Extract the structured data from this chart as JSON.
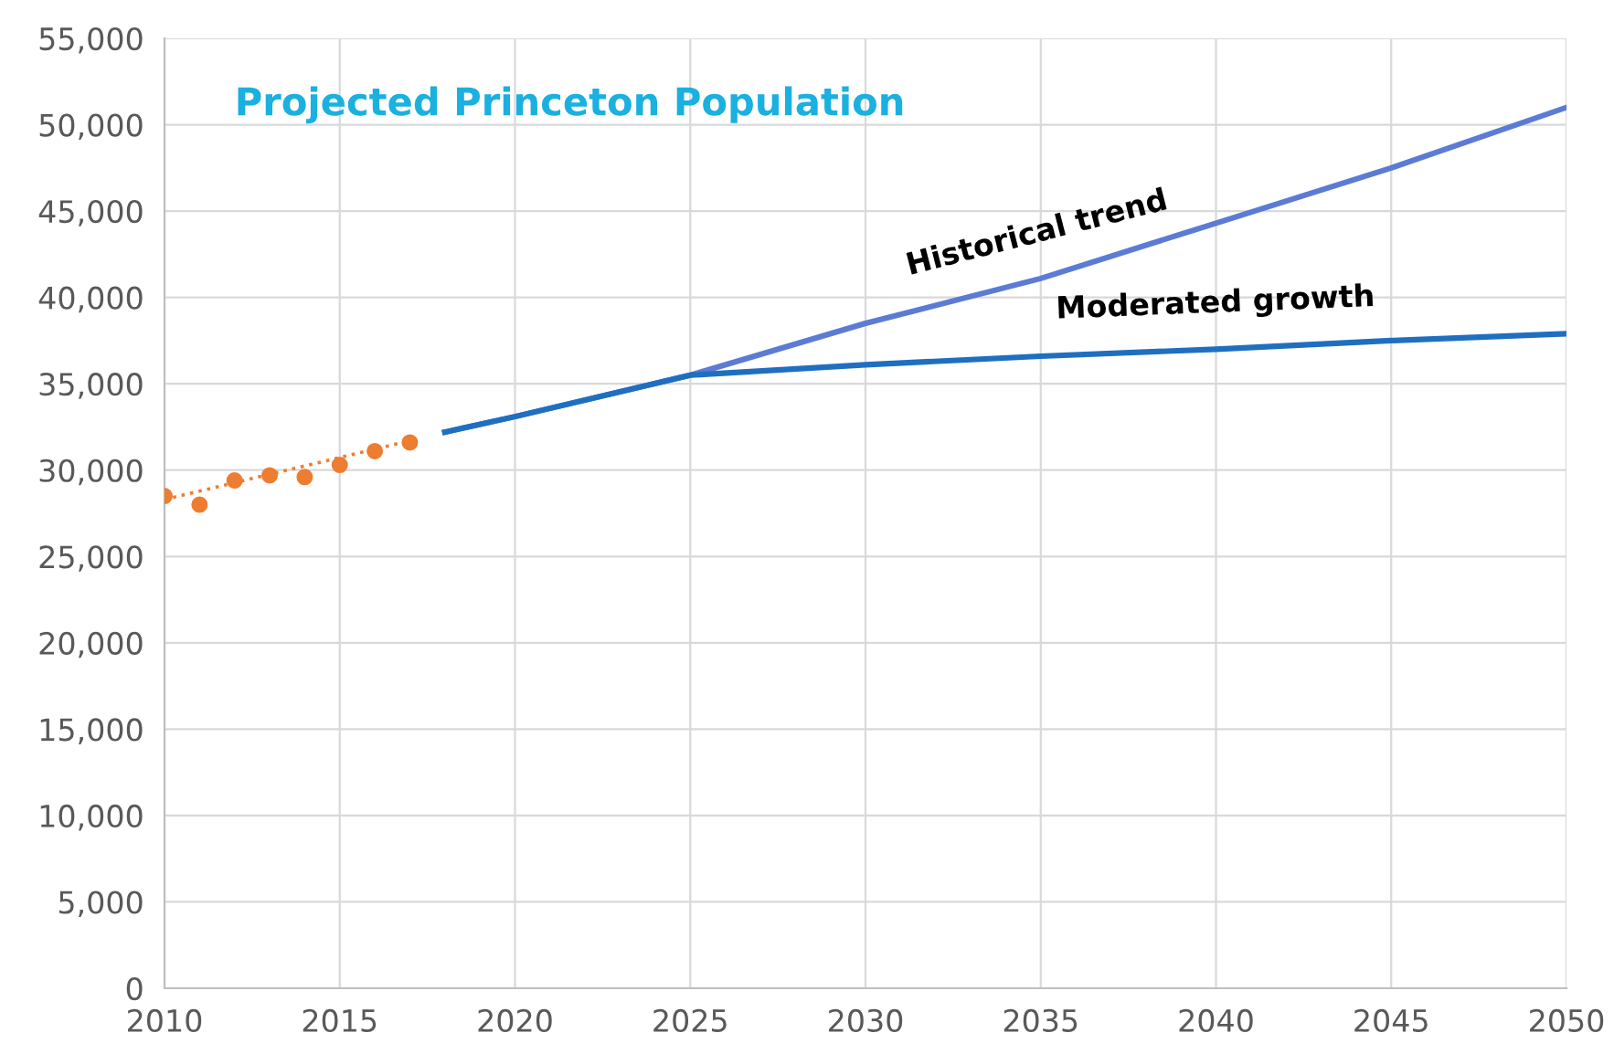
{
  "chart_data": {
    "type": "line",
    "title": "Projected Princeton Population",
    "xlim": [
      2010,
      2050
    ],
    "xticks": [
      2010,
      2015,
      2020,
      2025,
      2030,
      2035,
      2040,
      2045,
      2050
    ],
    "ylim": [
      0,
      55000
    ],
    "yticks": [
      {
        "value": 0,
        "label": "0"
      },
      {
        "value": 5000,
        "label": "5,000"
      },
      {
        "value": 10000,
        "label": "10,000"
      },
      {
        "value": 15000,
        "label": "15,000"
      },
      {
        "value": 20000,
        "label": "20,000"
      },
      {
        "value": 25000,
        "label": "25,000"
      },
      {
        "value": 30000,
        "label": "30,000"
      },
      {
        "value": 35000,
        "label": "35,000"
      },
      {
        "value": 40000,
        "label": "40,000"
      },
      {
        "value": 45000,
        "label": "45,000"
      },
      {
        "value": 50000,
        "label": "50,000"
      },
      {
        "value": 55000,
        "label": "55,000"
      }
    ],
    "grid": true,
    "series": [
      {
        "type": "scatter",
        "color": "#ed7d31",
        "marker": "circle",
        "x": [
          2010,
          2011,
          2012,
          2013,
          2014,
          2015,
          2016,
          2017
        ],
        "values": [
          28500,
          28000,
          29400,
          29700,
          29600,
          30300,
          31100,
          31600
        ]
      },
      {
        "color": "#ed7d31",
        "line_style": "dotted",
        "x": [
          2010,
          2017
        ],
        "values": [
          28300,
          31700
        ]
      },
      {
        "color": "#5b7bd5",
        "line_style": "solid",
        "x": [
          2018,
          2020,
          2025,
          2030,
          2035,
          2040,
          2045,
          2050
        ],
        "values": [
          32200,
          33100,
          35500,
          38500,
          41100,
          44300,
          47500,
          51000
        ]
      },
      {
        "color": "#1f6fc0",
        "line_style": "solid",
        "x": [
          2018,
          2020,
          2025,
          2030,
          2035,
          2040,
          2045,
          2050
        ],
        "values": [
          32200,
          33100,
          35500,
          36100,
          36600,
          37000,
          37500,
          37900
        ]
      }
    ],
    "annotations": [
      {
        "text": "Historical trend",
        "x": 2035,
        "y": 41100
      },
      {
        "text": "Moderated growth",
        "x": 2040,
        "y": 37000
      }
    ]
  }
}
